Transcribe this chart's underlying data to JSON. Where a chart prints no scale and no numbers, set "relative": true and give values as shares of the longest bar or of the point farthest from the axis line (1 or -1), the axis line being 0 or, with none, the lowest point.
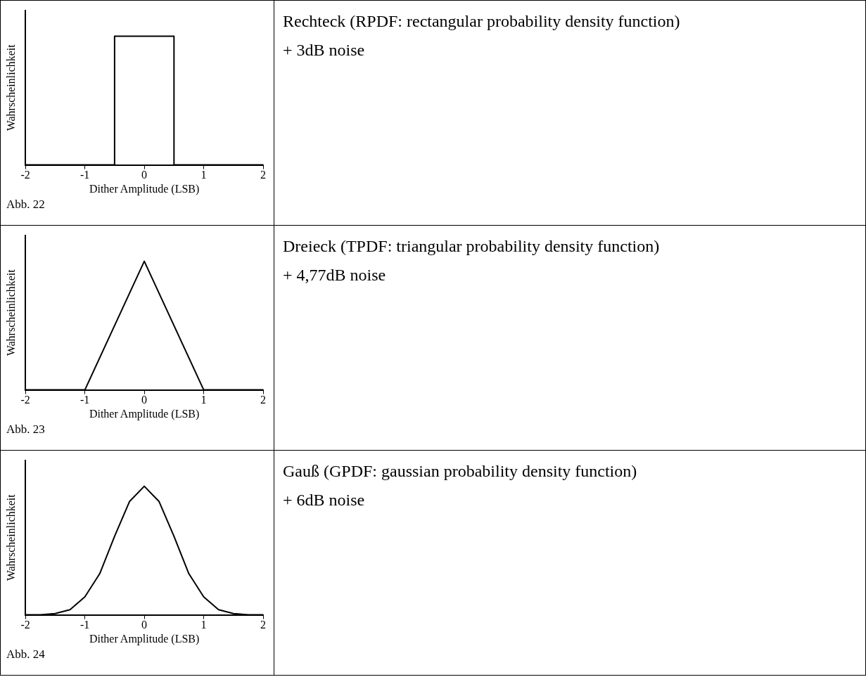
{
  "chart_data": [
    {
      "type": "line",
      "xlabel": "Dither Amplitude (LSB)",
      "ylabel": "Wahrscheinlichkeit",
      "relative": true,
      "xlim": [
        -2,
        2
      ],
      "xticks": [
        -2,
        -1,
        0,
        1,
        2
      ],
      "grid": false,
      "legend": false,
      "marker": "none",
      "line_style": "solid",
      "annotations": [
        "Abb. 22"
      ],
      "series": [
        {
          "color": "#000000",
          "x": [
            -2,
            -0.5,
            -0.5,
            0.5,
            0.5,
            2
          ],
          "values": [
            0,
            0,
            1,
            1,
            0,
            0
          ]
        }
      ]
    },
    {
      "type": "other",
      "title": "Rechteck (RPDF: rectangular probability density function)",
      "subtitle": "+ 3dB noise"
    },
    {
      "type": "line",
      "xlabel": "Dither Amplitude (LSB)",
      "ylabel": "Wahrscheinlichkeit",
      "relative": true,
      "xlim": [
        -2,
        2
      ],
      "xticks": [
        -2,
        -1,
        0,
        1,
        2
      ],
      "grid": false,
      "legend": false,
      "marker": "none",
      "line_style": "solid",
      "annotations": [
        "Abb. 23"
      ],
      "series": [
        {
          "color": "#000000",
          "x": [
            -2,
            -1,
            0,
            1,
            2
          ],
          "values": [
            0,
            0,
            1,
            0,
            0
          ]
        }
      ]
    },
    {
      "type": "other",
      "title": "Dreieck (TPDF: triangular probability density function)",
      "subtitle": "+ 4,77dB noise"
    },
    {
      "type": "line",
      "xlabel": "Dither Amplitude (LSB)",
      "ylabel": "Wahrscheinlichkeit",
      "relative": true,
      "xlim": [
        -2,
        2
      ],
      "xticks": [
        -2,
        -1,
        0,
        1,
        2
      ],
      "grid": false,
      "legend": false,
      "marker": "none",
      "line_style": "solid",
      "annotations": [
        "Abb. 24"
      ],
      "series": [
        {
          "color": "#000000",
          "x": [
            -2,
            -1.75,
            -1.5,
            -1.25,
            -1,
            -0.75,
            -0.5,
            -0.25,
            0,
            0.25,
            0.5,
            0.75,
            1,
            1.25,
            1.5,
            1.75,
            2
          ],
          "values": [
            0,
            0,
            0.01,
            0.04,
            0.14,
            0.32,
            0.61,
            0.88,
            1,
            0.88,
            0.61,
            0.32,
            0.14,
            0.04,
            0.01,
            0,
            0
          ]
        }
      ]
    },
    {
      "type": "other",
      "title": "Gauß (GPDF: gaussian probability density function)",
      "subtitle": "+ 6dB noise"
    }
  ]
}
